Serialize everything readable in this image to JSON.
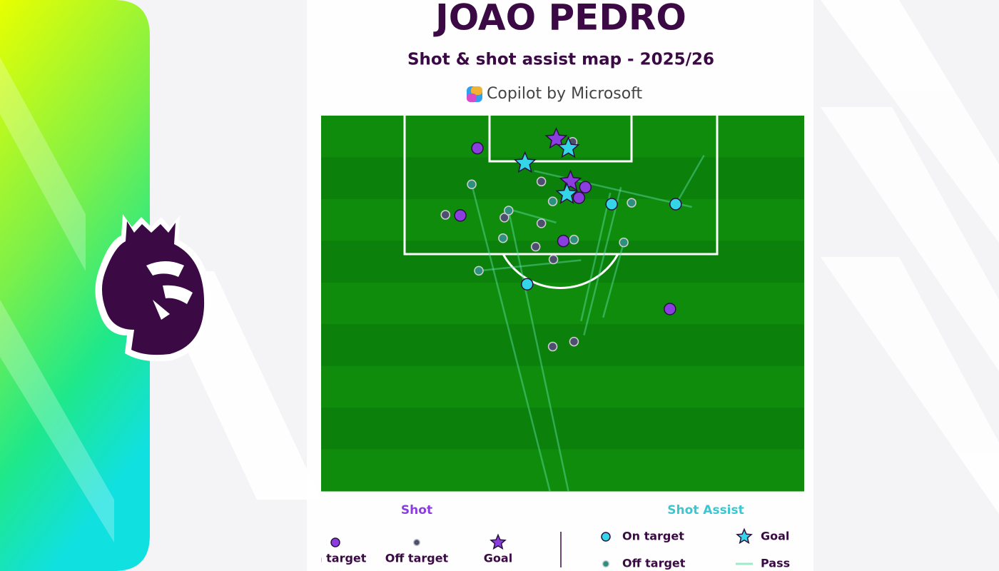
{
  "chart_data": {
    "type": "scatter",
    "title": "JOAO PEDRO",
    "subtitle": "Shot & shot assist map - 2025/26",
    "brand": "Copilot by Microsoft",
    "xlim": [
      0,
      68
    ],
    "ylim": [
      0,
      53
    ],
    "groups": [
      {
        "name": "Shot",
        "color": "#8a3ee0",
        "series": [
          {
            "name": "On target",
            "marker": "dot",
            "color": "#8a3ee0",
            "x": [
              22.0,
              19.6,
              37.2,
              36.3,
              34.1,
              49.1
            ],
            "y": [
              4.6,
              14.1,
              10.1,
              11.6,
              17.7,
              27.3
            ]
          },
          {
            "name": "Off target",
            "marker": "small-dot",
            "color": "#4d4f6e",
            "x": [
              17.5,
              31.0,
              25.8,
              31.0,
              30.2,
              32.7,
              32.6,
              35.6,
              35.4
            ],
            "y": [
              14.0,
              9.3,
              14.4,
              15.2,
              18.5,
              20.3,
              32.6,
              31.9,
              3.7
            ]
          },
          {
            "name": "Goal",
            "marker": "star",
            "color": "#8a3ee0",
            "x": [
              33.1,
              35.1
            ],
            "y": [
              3.3,
              9.3
            ]
          }
        ]
      },
      {
        "name": "Shot Assist",
        "color": "#3cc7d0",
        "series": [
          {
            "name": "On target",
            "marker": "dot",
            "color": "#35d5e8",
            "x": [
              40.9,
              49.9,
              29.0
            ],
            "y": [
              12.5,
              12.5,
              23.8
            ]
          },
          {
            "name": "Goal",
            "marker": "star",
            "color": "#35d5e8",
            "x": [
              28.7,
              34.8,
              34.6
            ],
            "y": [
              6.7,
              4.6,
              11.1
            ]
          },
          {
            "name": "Off target",
            "marker": "small-dot",
            "color": "#2f8f7f",
            "x": [
              21.2,
              26.4,
              25.6,
              32.6,
              35.6,
              42.6,
              43.7,
              22.2
            ],
            "y": [
              9.7,
              13.4,
              17.3,
              12.1,
              17.5,
              17.9,
              12.3,
              21.9
            ]
          },
          {
            "name": "Pass",
            "marker": "line",
            "color": "#5fe0a8",
            "segments": [
              {
                "x": [
                  21.2,
                  32.2
                ],
                "y": [
                  9.7,
                  53.0
                ]
              },
              {
                "x": [
                  26.4,
                  34.8
                ],
                "y": [
                  13.4,
                  53.0
                ]
              },
              {
                "x": [
                  42.2,
                  37.0
                ],
                "y": [
                  10.1,
                  31.0
                ]
              },
              {
                "x": [
                  30.0,
                  52.2
                ],
                "y": [
                  7.8,
                  12.9
                ]
              },
              {
                "x": [
                  53.9,
                  50.0
                ],
                "y": [
                  5.6,
                  12.4
                ]
              },
              {
                "x": [
                  27.1,
                  33.1
                ],
                "y": [
                  13.4,
                  15.1
                ]
              },
              {
                "x": [
                  22.2,
                  36.6
                ],
                "y": [
                  21.9,
                  20.4
                ]
              },
              {
                "x": [
                  42.6,
                  39.7
                ],
                "y": [
                  17.9,
                  28.5
                ]
              },
              {
                "x": [
                  40.7,
                  36.6
                ],
                "y": [
                  10.9,
                  29.0
                ]
              }
            ]
          }
        ]
      }
    ]
  }
}
